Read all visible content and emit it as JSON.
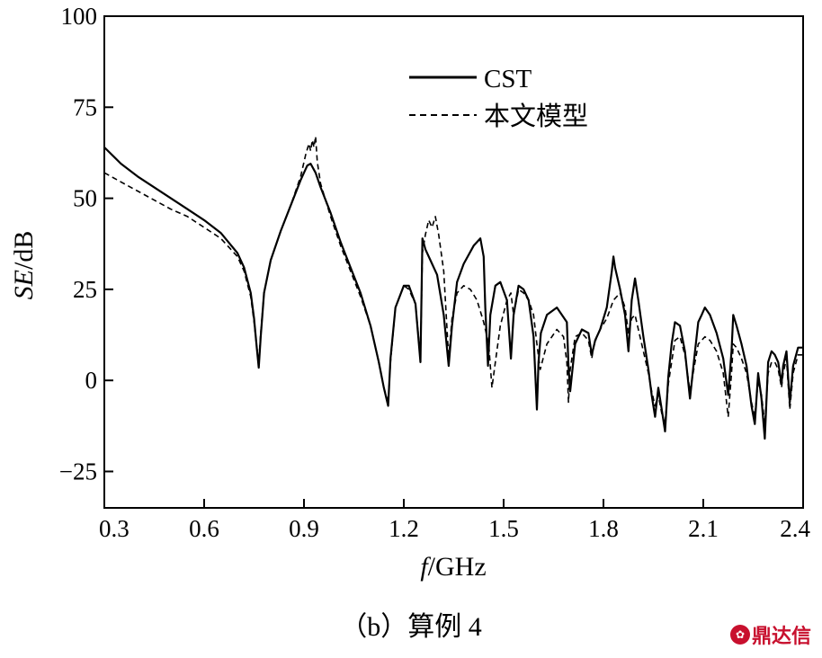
{
  "chart_data": {
    "type": "line",
    "xlabel_italic": "f",
    "xlabel_rest": "/GHz",
    "ylabel_italic": "SE",
    "ylabel_rest": "/dB",
    "xlim": [
      0.3,
      2.4
    ],
    "ylim": [
      -35,
      100
    ],
    "xticks": [
      0.3,
      0.6,
      0.9,
      1.2,
      1.5,
      1.8,
      2.1,
      2.4
    ],
    "xtick_labels": [
      "0.3",
      "0.6",
      "0.9",
      "1.2",
      "1.5",
      "1.8",
      "2.1",
      "2.4"
    ],
    "yticks": [
      100,
      75,
      50,
      25,
      0,
      -25
    ],
    "ytick_labels": [
      "100",
      "75",
      "50",
      "25",
      "0",
      "−25"
    ],
    "legend_position": "top-center",
    "grid": false,
    "series": [
      {
        "name": "CST",
        "style": "solid",
        "x": [
          0.3,
          0.35,
          0.4,
          0.45,
          0.5,
          0.55,
          0.6,
          0.65,
          0.7,
          0.72,
          0.74,
          0.75,
          0.758,
          0.764,
          0.77,
          0.78,
          0.8,
          0.83,
          0.86,
          0.89,
          0.91,
          0.92,
          0.935,
          0.95,
          0.98,
          1.01,
          1.04,
          1.07,
          1.1,
          1.125,
          1.14,
          1.153,
          1.16,
          1.175,
          1.2,
          1.215,
          1.235,
          1.25,
          1.256,
          1.265,
          1.28,
          1.3,
          1.32,
          1.335,
          1.345,
          1.36,
          1.38,
          1.41,
          1.43,
          1.44,
          1.445,
          1.453,
          1.46,
          1.475,
          1.49,
          1.51,
          1.522,
          1.53,
          1.545,
          1.56,
          1.575,
          1.59,
          1.6,
          1.605,
          1.612,
          1.63,
          1.66,
          1.69,
          1.695,
          1.7,
          1.715,
          1.735,
          1.755,
          1.765,
          1.775,
          1.79,
          1.81,
          1.825,
          1.83,
          1.835,
          1.85,
          1.865,
          1.875,
          1.885,
          1.895,
          1.905,
          1.92,
          1.935,
          1.945,
          1.955,
          1.965,
          1.975,
          1.985,
          1.995,
          2.005,
          2.015,
          2.03,
          2.045,
          2.06,
          2.075,
          2.085,
          2.095,
          2.105,
          2.12,
          2.14,
          2.16,
          2.175,
          2.185,
          2.19,
          2.2,
          2.215,
          2.23,
          2.245,
          2.255,
          2.265,
          2.275,
          2.285,
          2.295,
          2.305,
          2.315,
          2.325,
          2.335,
          2.34,
          2.35,
          2.36,
          2.37,
          2.385,
          2.4
        ],
        "y": [
          64,
          59.5,
          56,
          53,
          50,
          47,
          44,
          40.5,
          35,
          31,
          24,
          17,
          9,
          3.5,
          12,
          24,
          33,
          41,
          48,
          55,
          59,
          59.5,
          57,
          53,
          46,
          38,
          31,
          24,
          15,
          5,
          -2,
          -7,
          6,
          20,
          26,
          26,
          21,
          5,
          39,
          36,
          33,
          29,
          18,
          4,
          15,
          27,
          32,
          37,
          39,
          34,
          20,
          4,
          18,
          26,
          27,
          22,
          6,
          18,
          26,
          25,
          22,
          12,
          -8,
          5,
          13,
          18,
          20,
          16,
          4,
          -3,
          10,
          14,
          13,
          7,
          11,
          14,
          20,
          30,
          34,
          31,
          25,
          18,
          8,
          22,
          28,
          22,
          12,
          3,
          -4,
          -10,
          -2,
          -8,
          -14,
          1,
          10,
          16,
          15,
          8,
          -5,
          8,
          16,
          18,
          20,
          18,
          13,
          6,
          -4,
          8,
          18,
          15,
          10,
          4,
          -7,
          -12,
          2,
          -5,
          -16,
          5,
          8,
          7,
          5,
          -1,
          4,
          8,
          -6,
          4,
          9,
          9
        ]
      },
      {
        "name": "本文模型",
        "style": "dashed",
        "x": [
          0.3,
          0.35,
          0.4,
          0.45,
          0.5,
          0.55,
          0.6,
          0.65,
          0.7,
          0.72,
          0.74,
          0.75,
          0.758,
          0.764,
          0.77,
          0.78,
          0.8,
          0.83,
          0.86,
          0.89,
          0.905,
          0.915,
          0.92,
          0.925,
          0.93,
          0.935,
          0.94,
          0.95,
          0.98,
          1.01,
          1.04,
          1.07,
          1.1,
          1.125,
          1.14,
          1.153,
          1.16,
          1.175,
          1.2,
          1.215,
          1.235,
          1.25,
          1.256,
          1.265,
          1.275,
          1.285,
          1.295,
          1.305,
          1.32,
          1.335,
          1.345,
          1.36,
          1.38,
          1.4,
          1.42,
          1.44,
          1.455,
          1.465,
          1.475,
          1.49,
          1.51,
          1.522,
          1.53,
          1.545,
          1.56,
          1.575,
          1.59,
          1.6,
          1.61,
          1.63,
          1.66,
          1.68,
          1.69,
          1.695,
          1.7,
          1.715,
          1.735,
          1.755,
          1.765,
          1.77,
          1.78,
          1.79,
          1.81,
          1.83,
          1.85,
          1.865,
          1.875,
          1.885,
          1.895,
          1.905,
          1.92,
          1.935,
          1.945,
          1.955,
          1.965,
          1.975,
          1.985,
          1.995,
          2.005,
          2.015,
          2.03,
          2.045,
          2.06,
          2.075,
          2.085,
          2.095,
          2.105,
          2.12,
          2.14,
          2.16,
          2.175,
          2.185,
          2.19,
          2.2,
          2.215,
          2.23,
          2.245,
          2.255,
          2.265,
          2.275,
          2.285,
          2.295,
          2.305,
          2.315,
          2.325,
          2.335,
          2.34,
          2.35,
          2.36,
          2.37,
          2.385,
          2.4
        ],
        "y": [
          57,
          54.5,
          52,
          49.5,
          47,
          45,
          42,
          39,
          34,
          30,
          23,
          16,
          9,
          5,
          13,
          24,
          33,
          41,
          48,
          56,
          62,
          65,
          63,
          66,
          64,
          67,
          60,
          54,
          45,
          37,
          30,
          23,
          15,
          5,
          -2,
          -6,
          5,
          20,
          26,
          25,
          21,
          6,
          35,
          40,
          44,
          42,
          45,
          40,
          30,
          6,
          17,
          24,
          26,
          25,
          22,
          16,
          10,
          -2,
          5,
          15,
          22,
          24,
          18,
          25,
          24,
          22,
          18,
          10,
          3,
          10,
          14,
          12,
          5,
          -6,
          3,
          12,
          13,
          11,
          6,
          9,
          12,
          14,
          17,
          22,
          24,
          20,
          13,
          17,
          18,
          14,
          8,
          2,
          -3,
          -7,
          -4,
          -9,
          -12,
          -1,
          5,
          11,
          12,
          7,
          -3,
          5,
          10,
          11,
          12,
          11,
          8,
          2,
          -10,
          2,
          10,
          9,
          6,
          2,
          -6,
          -10,
          0,
          -4,
          -12,
          2,
          5,
          5,
          3,
          -2,
          2,
          6,
          -8,
          2,
          7,
          7
        ]
      }
    ]
  },
  "caption": "（b）算例 4",
  "watermark": "鼎达信"
}
